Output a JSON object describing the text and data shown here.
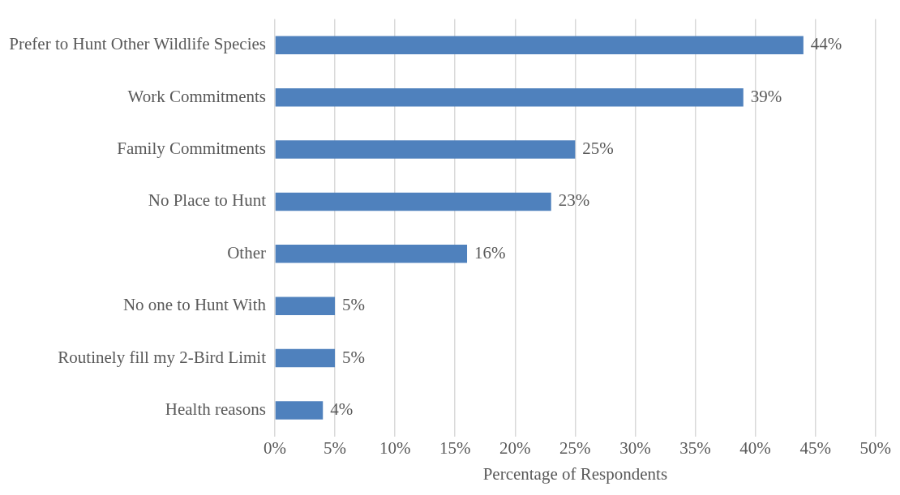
{
  "chart_data": {
    "type": "bar",
    "orientation": "horizontal",
    "xlabel": "Percentage of Respondents",
    "categories": [
      "Prefer to Hunt Other Wildlife Species",
      "Work Commitments",
      "Family Commitments",
      "No Place to Hunt",
      "Other",
      "No one to Hunt With",
      "Routinely fill my 2-Bird Limit",
      "Health reasons"
    ],
    "values": [
      44,
      39,
      25,
      23,
      16,
      5,
      5,
      4
    ],
    "value_labels": [
      "44%",
      "39%",
      "25%",
      "23%",
      "16%",
      "5%",
      "5%",
      "4%"
    ],
    "color": "#4f81bd",
    "xlim": [
      0,
      50
    ],
    "xticks": [
      {
        "value": 0,
        "label": "0%"
      },
      {
        "value": 5,
        "label": "5%"
      },
      {
        "value": 10,
        "label": "10%"
      },
      {
        "value": 15,
        "label": "15%"
      },
      {
        "value": 20,
        "label": "20%"
      },
      {
        "value": 25,
        "label": "25%"
      },
      {
        "value": 30,
        "label": "30%"
      },
      {
        "value": 35,
        "label": "35%"
      },
      {
        "value": 40,
        "label": "40%"
      },
      {
        "value": 45,
        "label": "45%"
      },
      {
        "value": 50,
        "label": "50%"
      }
    ],
    "grid": "x",
    "legend": false
  }
}
